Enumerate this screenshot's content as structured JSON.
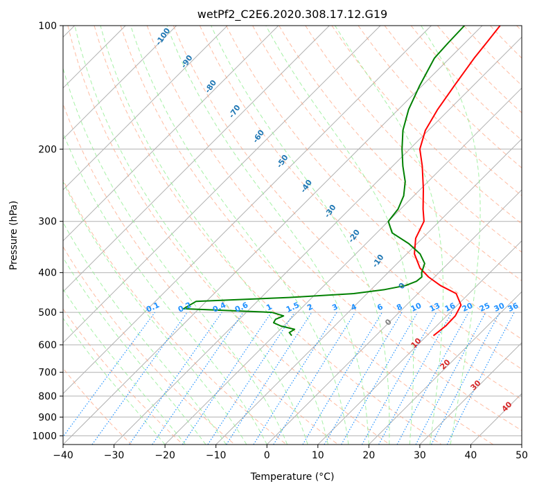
{
  "chart_data": {
    "type": "line",
    "title": "wetPf2_C2E6.2020.308.17.12.G19",
    "xlabel": "Temperature (°C)",
    "ylabel": "Pressure (hPa)",
    "xlim": [
      -40,
      50
    ],
    "ylim": [
      1050,
      100
    ],
    "y_scale": "log",
    "x_ticks": [
      "−40",
      "−30",
      "−20",
      "−10",
      "0",
      "10",
      "20",
      "30",
      "40",
      "50"
    ],
    "y_ticks": [
      "100",
      "200",
      "300",
      "400",
      "500",
      "600",
      "700",
      "800",
      "900",
      "1000"
    ],
    "grid": true,
    "skew": 45,
    "series": [
      {
        "role": "temperature",
        "color": "#ff0000",
        "points": [
          {
            "p": 570,
            "t": 11.3
          },
          {
            "p": 540,
            "t": 11.8
          },
          {
            "p": 510,
            "t": 11.7
          },
          {
            "p": 480,
            "t": 10.7
          },
          {
            "p": 450,
            "t": 7.5
          },
          {
            "p": 430,
            "t": 2.8
          },
          {
            "p": 410,
            "t": -1.2
          },
          {
            "p": 390,
            "t": -4.6
          },
          {
            "p": 360,
            "t": -8.5
          },
          {
            "p": 330,
            "t": -11.3
          },
          {
            "p": 300,
            "t": -13.0
          },
          {
            "p": 280,
            "t": -15.6
          },
          {
            "p": 250,
            "t": -19.5
          },
          {
            "p": 220,
            "t": -24.2
          },
          {
            "p": 200,
            "t": -28.0
          },
          {
            "p": 180,
            "t": -30.6
          },
          {
            "p": 160,
            "t": -32.3
          },
          {
            "p": 140,
            "t": -33.7
          },
          {
            "p": 120,
            "t": -35.2
          },
          {
            "p": 110,
            "t": -35.8
          },
          {
            "p": 100,
            "t": -36.5
          }
        ]
      },
      {
        "role": "dewpoint",
        "color": "#008000",
        "points": [
          {
            "p": 570,
            "t": -16.5
          },
          {
            "p": 560,
            "t": -17.6
          },
          {
            "p": 550,
            "t": -17.2
          },
          {
            "p": 540,
            "t": -20.5
          },
          {
            "p": 530,
            "t": -22.6
          },
          {
            "p": 520,
            "t": -22.9
          },
          {
            "p": 510,
            "t": -22.0
          },
          {
            "p": 500,
            "t": -25.0
          },
          {
            "p": 490,
            "t": -43.0
          },
          {
            "p": 470,
            "t": -42.0
          },
          {
            "p": 460,
            "t": -24.5
          },
          {
            "p": 450,
            "t": -12.6
          },
          {
            "p": 440,
            "t": -7.3
          },
          {
            "p": 430,
            "t": -4.0
          },
          {
            "p": 420,
            "t": -2.7
          },
          {
            "p": 410,
            "t": -2.5
          },
          {
            "p": 400,
            "t": -3.4
          },
          {
            "p": 380,
            "t": -4.6
          },
          {
            "p": 360,
            "t": -7.4
          },
          {
            "p": 340,
            "t": -11.6
          },
          {
            "p": 320,
            "t": -17.0
          },
          {
            "p": 300,
            "t": -20.0
          },
          {
            "p": 280,
            "t": -20.5
          },
          {
            "p": 260,
            "t": -22.0
          },
          {
            "p": 240,
            "t": -24.5
          },
          {
            "p": 220,
            "t": -28.0
          },
          {
            "p": 200,
            "t": -31.5
          },
          {
            "p": 180,
            "t": -35.0
          },
          {
            "p": 160,
            "t": -38.0
          },
          {
            "p": 140,
            "t": -40.5
          },
          {
            "p": 120,
            "t": -43.0
          },
          {
            "p": 110,
            "t": -43.3
          },
          {
            "p": 100,
            "t": -43.5
          }
        ]
      }
    ],
    "dry_adiabat_labels": [
      "-100",
      "-90",
      "-80",
      "-70",
      "-60",
      "-50",
      "-40",
      "-30",
      "-20",
      "-10",
      "0"
    ],
    "moist_adiabat_labels": [
      "10",
      "20",
      "30",
      "40"
    ],
    "mixing_ratio_labels": [
      "0.1",
      "0.2",
      "0.4",
      "0.6",
      "1",
      "1.5",
      "2",
      "3",
      "4",
      "6",
      "8",
      "10",
      "13",
      "16",
      "20",
      "25",
      "30",
      "36"
    ],
    "colors": {
      "isotherm": "#b0b0b0",
      "isobar": "#b0b0b0",
      "dry_adiabat": "#ffa07a",
      "moist_adiabat": "#90ee90",
      "mixing_ratio": "#1e90ff",
      "pseudo_adiabat": "#d2b48c"
    }
  }
}
